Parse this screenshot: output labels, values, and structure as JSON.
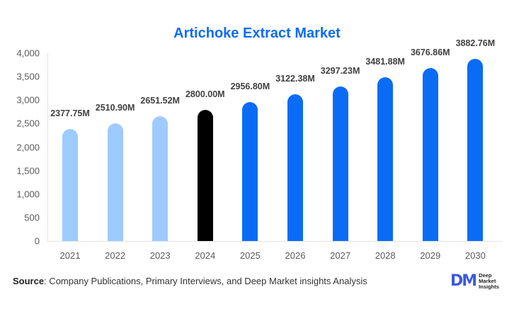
{
  "title": "Artichoke Extract Market",
  "chart_data": {
    "type": "bar",
    "title": "Artichoke Extract Market",
    "xlabel": "",
    "ylabel": "",
    "ylim": [
      0,
      4000
    ],
    "yticks": [
      "0",
      "500",
      "1,000",
      "1,500",
      "2,000",
      "2,500",
      "3,000",
      "3,500",
      "4,000"
    ],
    "categories": [
      "2021",
      "2022",
      "2023",
      "2024",
      "2025",
      "2026",
      "2027",
      "2028",
      "2029",
      "2030"
    ],
    "values": [
      2377.75,
      2510.9,
      2651.52,
      2800.0,
      2956.8,
      3122.38,
      3297.23,
      3481.88,
      3676.86,
      3882.76
    ],
    "labels": [
      "2377.75M",
      "2510.90M",
      "2651.52M",
      "2800.00M",
      "2956.80M",
      "3122.38M",
      "3297.23M",
      "3481.88M",
      "3676.86M",
      "3882.76M"
    ],
    "bar_colors": [
      "#9ecbff",
      "#9ecbff",
      "#9ecbff",
      "#000000",
      "#0a6cf5",
      "#0a6cf5",
      "#0a6cf5",
      "#0a6cf5",
      "#0a6cf5",
      "#0a6cf5"
    ],
    "grid": false,
    "legend": null
  },
  "footer": {
    "source_label": "Source",
    "source_text": ": Company Publications, Primary Interviews, and Deep Market insights Analysis"
  },
  "logo": {
    "mark": "DM",
    "line1": "Deep",
    "line2": "Market",
    "line3": "Insights"
  },
  "colors": {
    "title": "#0a6cf5",
    "historical": "#9ecbff",
    "base_year": "#000000",
    "forecast": "#0a6cf5"
  }
}
